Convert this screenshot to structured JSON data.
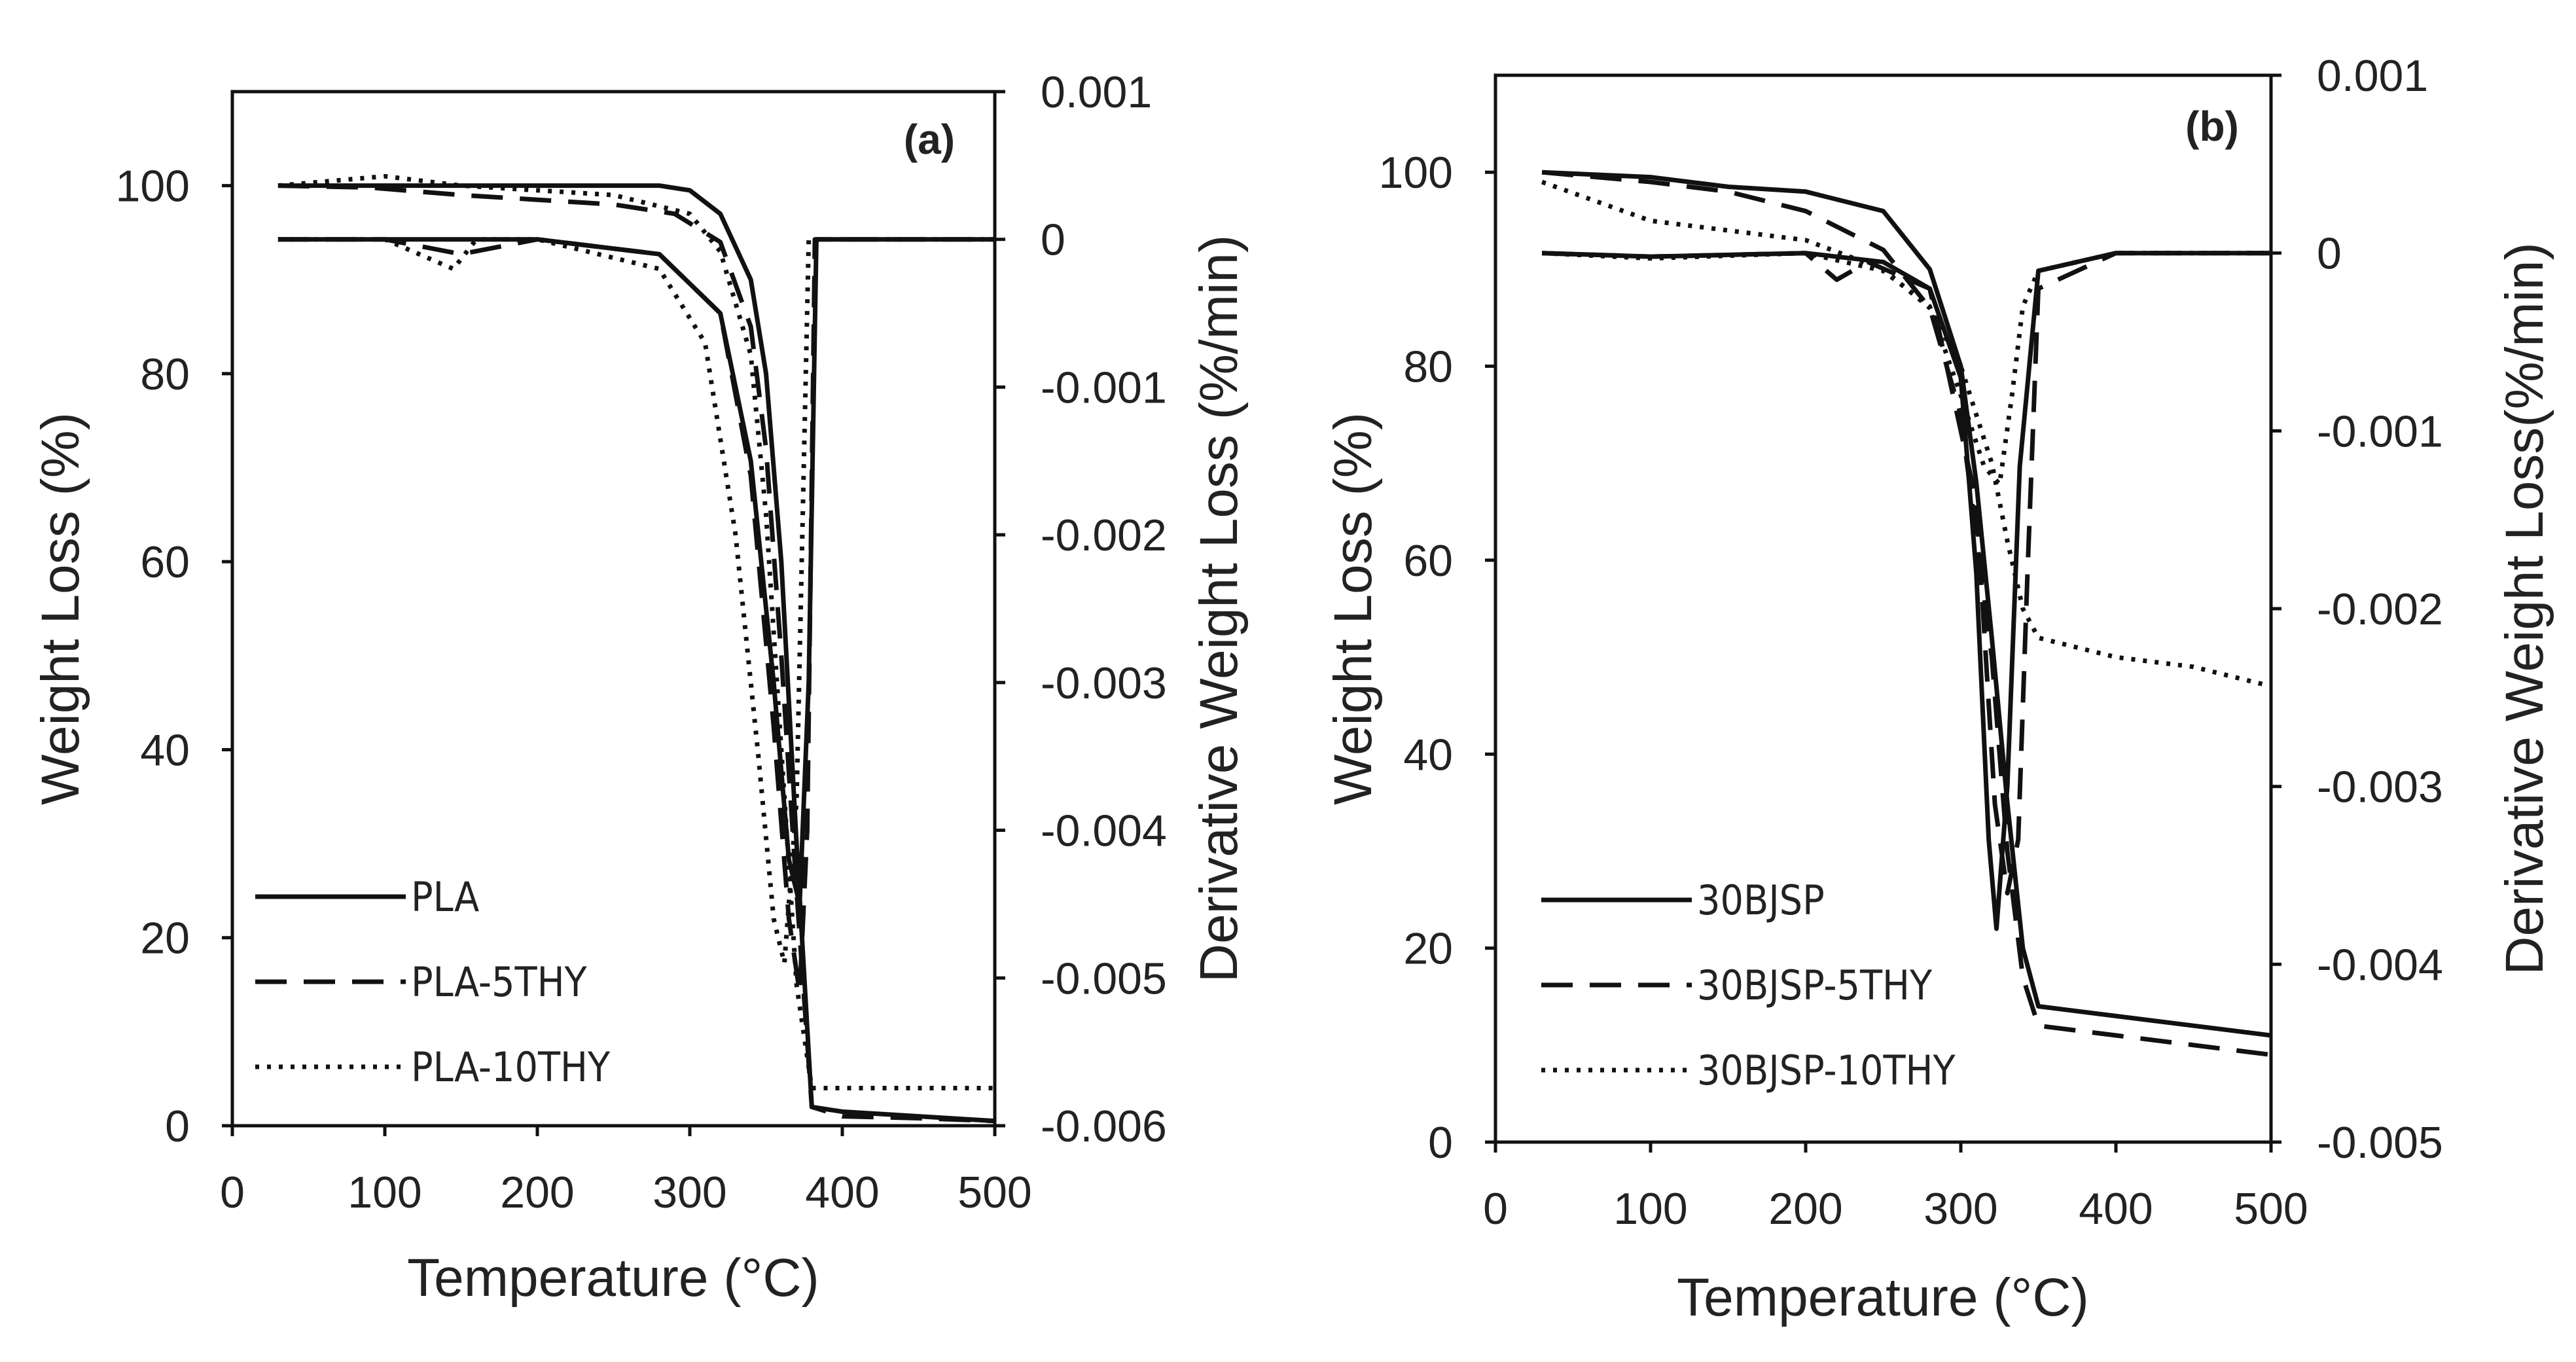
{
  "chart_data": [
    {
      "type": "line",
      "panel_label": "(a)",
      "xlabel": "Temperature (°C)",
      "ylabel_left": "Weight Loss (%)",
      "ylabel_right": "Derivative Weight Loss (%/min)",
      "xlim": [
        0,
        500
      ],
      "xticks": [
        "0",
        "100",
        "200",
        "300",
        "400",
        "500"
      ],
      "ylim_left": [
        0,
        110
      ],
      "yticks_left": [
        "0",
        "20",
        "40",
        "60",
        "80",
        "100"
      ],
      "ylim_right": [
        -0.006,
        0.001
      ],
      "yticks_right": [
        "0.001",
        "0",
        "-0.001",
        "-0.002",
        "-0.003",
        "-0.004",
        "-0.005",
        "-0.006"
      ],
      "legend_position": "bottom-left",
      "legend": [
        "PLA",
        "PLA-5THY",
        "PLA-10THY"
      ],
      "series": [
        {
          "name": "PLA",
          "style": "solid",
          "axis": "left",
          "x": [
            30,
            100,
            200,
            280,
            300,
            320,
            340,
            350,
            360,
            370,
            380,
            400,
            450,
            500
          ],
          "y": [
            100,
            100,
            100,
            100,
            99.5,
            97,
            90,
            80,
            60,
            30,
            2,
            1.5,
            1,
            0.5
          ]
        },
        {
          "name": "PLA-5THY",
          "style": "dashed",
          "axis": "left",
          "x": [
            30,
            90,
            150,
            200,
            250,
            290,
            320,
            340,
            350,
            360,
            370,
            380,
            400,
            450,
            500
          ],
          "y": [
            100,
            99.8,
            99,
            98.5,
            98,
            97,
            94,
            85,
            72,
            50,
            25,
            2,
            1,
            0.8,
            0.5
          ]
        },
        {
          "name": "PLA-10THY",
          "style": "dotted",
          "axis": "left",
          "x": [
            30,
            100,
            150,
            200,
            250,
            300,
            320,
            340,
            350,
            360,
            370,
            380,
            400,
            450,
            500
          ],
          "y": [
            100,
            101,
            100,
            99.5,
            99,
            97,
            93,
            82,
            65,
            40,
            15,
            4,
            4,
            4,
            4
          ]
        },
        {
          "name": "PLA (derivative)",
          "style": "solid",
          "axis": "right",
          "x": [
            30,
            100,
            200,
            280,
            320,
            340,
            355,
            365,
            372,
            378,
            383,
            400,
            500
          ],
          "y": [
            0,
            0,
            0,
            -0.0001,
            -0.0005,
            -0.0015,
            -0.003,
            -0.0042,
            -0.0045,
            -0.003,
            0,
            0,
            0
          ]
        },
        {
          "name": "PLA-5THY (derivative)",
          "style": "dashed",
          "axis": "right",
          "x": [
            30,
            100,
            150,
            200,
            280,
            320,
            340,
            355,
            365,
            372,
            377,
            382,
            400,
            500
          ],
          "y": [
            0,
            0,
            -0.0001,
            0,
            -0.0001,
            -0.0005,
            -0.0016,
            -0.0033,
            -0.0046,
            -0.0051,
            -0.004,
            0,
            0,
            0
          ]
        },
        {
          "name": "PLA-10THY (derivative)",
          "style": "dotted",
          "axis": "right",
          "x": [
            30,
            100,
            145,
            160,
            200,
            280,
            310,
            330,
            345,
            355,
            362,
            370,
            378,
            500
          ],
          "y": [
            0,
            0,
            -0.0002,
            0,
            0,
            -0.0002,
            -0.0007,
            -0.002,
            -0.0035,
            -0.0046,
            -0.0049,
            -0.0038,
            0,
            0
          ]
        }
      ]
    },
    {
      "type": "line",
      "panel_label": "(b)",
      "xlabel": "Temperature (°C)",
      "ylabel_left": "Weight Loss (%)",
      "ylabel_right": "Derivative Weight Loss(%/min)",
      "xlim": [
        0,
        500
      ],
      "xticks": [
        "0",
        "100",
        "200",
        "300",
        "400",
        "500"
      ],
      "ylim_left": [
        0,
        110
      ],
      "yticks_left": [
        "0",
        "20",
        "40",
        "60",
        "80",
        "100"
      ],
      "ylim_right": [
        -0.005,
        0.001
      ],
      "yticks_right": [
        "0.001",
        "0",
        "-0.001",
        "-0.002",
        "-0.003",
        "-0.004",
        "-0.005"
      ],
      "legend_position": "bottom-left",
      "legend": [
        "30BJSP",
        "30BJSP-5THY",
        "30BJSP-10THY"
      ],
      "series": [
        {
          "name": "30BJSP",
          "style": "solid",
          "axis": "left",
          "x": [
            30,
            100,
            150,
            200,
            250,
            280,
            300,
            310,
            320,
            330,
            340,
            350,
            400,
            450,
            500
          ],
          "y": [
            100,
            99.5,
            98.5,
            98,
            96,
            90,
            80,
            68,
            52,
            35,
            20,
            14,
            13,
            12,
            11
          ]
        },
        {
          "name": "30BJSP-5THY",
          "style": "dashed",
          "axis": "left",
          "x": [
            30,
            100,
            150,
            200,
            250,
            280,
            300,
            320,
            330,
            340,
            350,
            400,
            450,
            500
          ],
          "y": [
            100,
            99,
            98,
            96,
            92,
            86,
            75,
            50,
            30,
            17,
            12,
            11,
            10,
            9
          ]
        },
        {
          "name": "30BJSP-10THY",
          "style": "dotted",
          "axis": "left",
          "x": [
            30,
            100,
            150,
            200,
            250,
            280,
            300,
            320,
            330,
            340,
            350,
            400,
            450,
            500
          ],
          "y": [
            99,
            95,
            94,
            93,
            90,
            86,
            80,
            70,
            62,
            55,
            52,
            50,
            49,
            47
          ]
        },
        {
          "name": "30BJSP (derivative)",
          "style": "solid",
          "axis": "right",
          "x": [
            30,
            100,
            200,
            250,
            280,
            300,
            310,
            318,
            323,
            330,
            338,
            350,
            400,
            500
          ],
          "y": [
            0,
            -2e-05,
            0,
            -5e-05,
            -0.0002,
            -0.0007,
            -0.0018,
            -0.0033,
            -0.0038,
            -0.003,
            -0.0012,
            -0.0001,
            0,
            0
          ]
        },
        {
          "name": "30BJSP-5THY (derivative)",
          "style": "dashed",
          "axis": "right",
          "x": [
            30,
            100,
            200,
            220,
            240,
            280,
            310,
            322,
            330,
            337,
            343,
            350,
            400,
            500
          ],
          "y": [
            0,
            -2e-05,
            0,
            -0.00015,
            -5e-05,
            -0.0002,
            -0.0014,
            -0.0031,
            -0.0036,
            -0.0033,
            -0.0018,
            -0.0002,
            0,
            0
          ]
        },
        {
          "name": "30BJSP-10THY (derivative)",
          "style": "dotted",
          "axis": "right",
          "x": [
            30,
            100,
            200,
            250,
            280,
            300,
            315,
            325,
            333,
            340,
            350,
            400,
            500
          ],
          "y": [
            0,
            -3e-05,
            0,
            -0.0001,
            -0.0003,
            -0.0008,
            -0.0012,
            -0.0013,
            -0.0008,
            -0.0003,
            -0.0001,
            0,
            0
          ]
        }
      ]
    }
  ]
}
